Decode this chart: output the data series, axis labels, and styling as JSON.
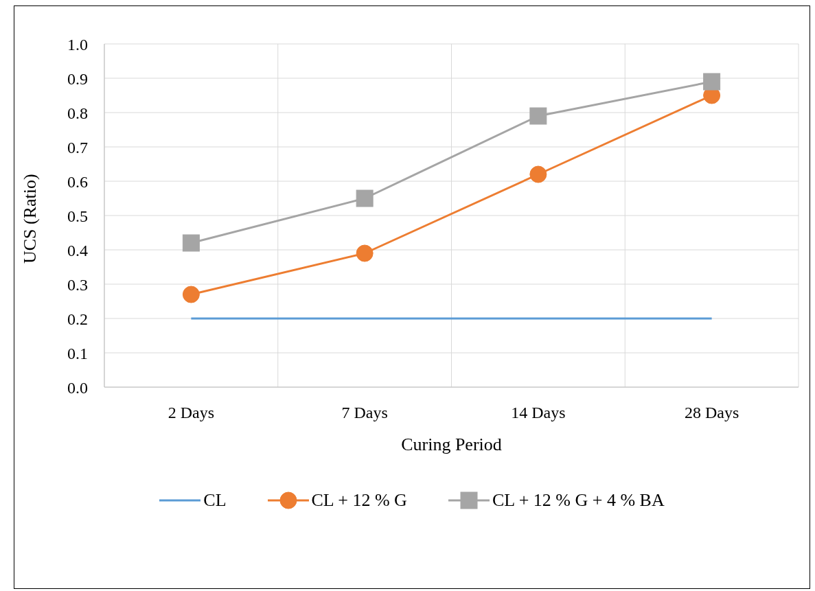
{
  "chart_data": {
    "type": "line",
    "xlabel": "Curing Period",
    "ylabel": "UCS (Ratio)",
    "categories": [
      "2 Days",
      "7 Days",
      "14 Days",
      "28 Days"
    ],
    "series": [
      {
        "name": "CL",
        "color": "#5b9bd5",
        "marker": "none",
        "values": [
          0.2,
          0.2,
          0.2,
          0.2
        ]
      },
      {
        "name": "CL + 12 % G",
        "color": "#ed7d31",
        "marker": "circle",
        "values": [
          0.27,
          0.39,
          0.62,
          0.85
        ]
      },
      {
        "name": "CL + 12 % G + 4 % BA",
        "color": "#a5a5a5",
        "marker": "square",
        "values": [
          0.42,
          0.55,
          0.79,
          0.89
        ]
      }
    ],
    "ylim": [
      0,
      1
    ],
    "yticks": [
      {
        "value": 0,
        "label": "0.0"
      },
      {
        "value": 0.1,
        "label": "0.1"
      },
      {
        "value": 0.2,
        "label": "0.2"
      },
      {
        "value": 0.3,
        "label": "0.3"
      },
      {
        "value": 0.4,
        "label": "0.4"
      },
      {
        "value": 0.5,
        "label": "0.5"
      },
      {
        "value": 0.6,
        "label": "0.6"
      },
      {
        "value": 0.7,
        "label": "0.7"
      },
      {
        "value": 0.8,
        "label": "0.8"
      },
      {
        "value": 0.9,
        "label": "0.9"
      },
      {
        "value": 1,
        "label": "1.0"
      }
    ],
    "grid": true,
    "legend": "bottom",
    "line_style": "solid"
  }
}
